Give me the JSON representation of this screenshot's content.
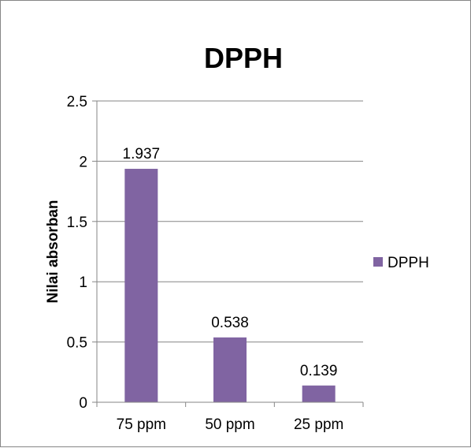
{
  "chart_data": {
    "type": "bar",
    "title": "DPPH",
    "xlabel": "",
    "ylabel": "Nilai absorban",
    "categories": [
      "75 ppm",
      "50 ppm",
      "25 ppm"
    ],
    "series": [
      {
        "name": "DPPH",
        "values": [
          1.937,
          0.538,
          0.139
        ],
        "color": "#8064A2"
      }
    ],
    "data_labels": [
      "1.937",
      "0.538",
      "0.139"
    ],
    "ylim": [
      0,
      2.5
    ],
    "yticks": [
      0,
      0.5,
      1,
      1.5,
      2,
      2.5
    ],
    "ytick_labels": [
      "0",
      "0.5",
      "1",
      "1.5",
      "2",
      "2.5"
    ],
    "grid": true,
    "legend": {
      "placement": "right",
      "entries": [
        "DPPH"
      ]
    }
  }
}
